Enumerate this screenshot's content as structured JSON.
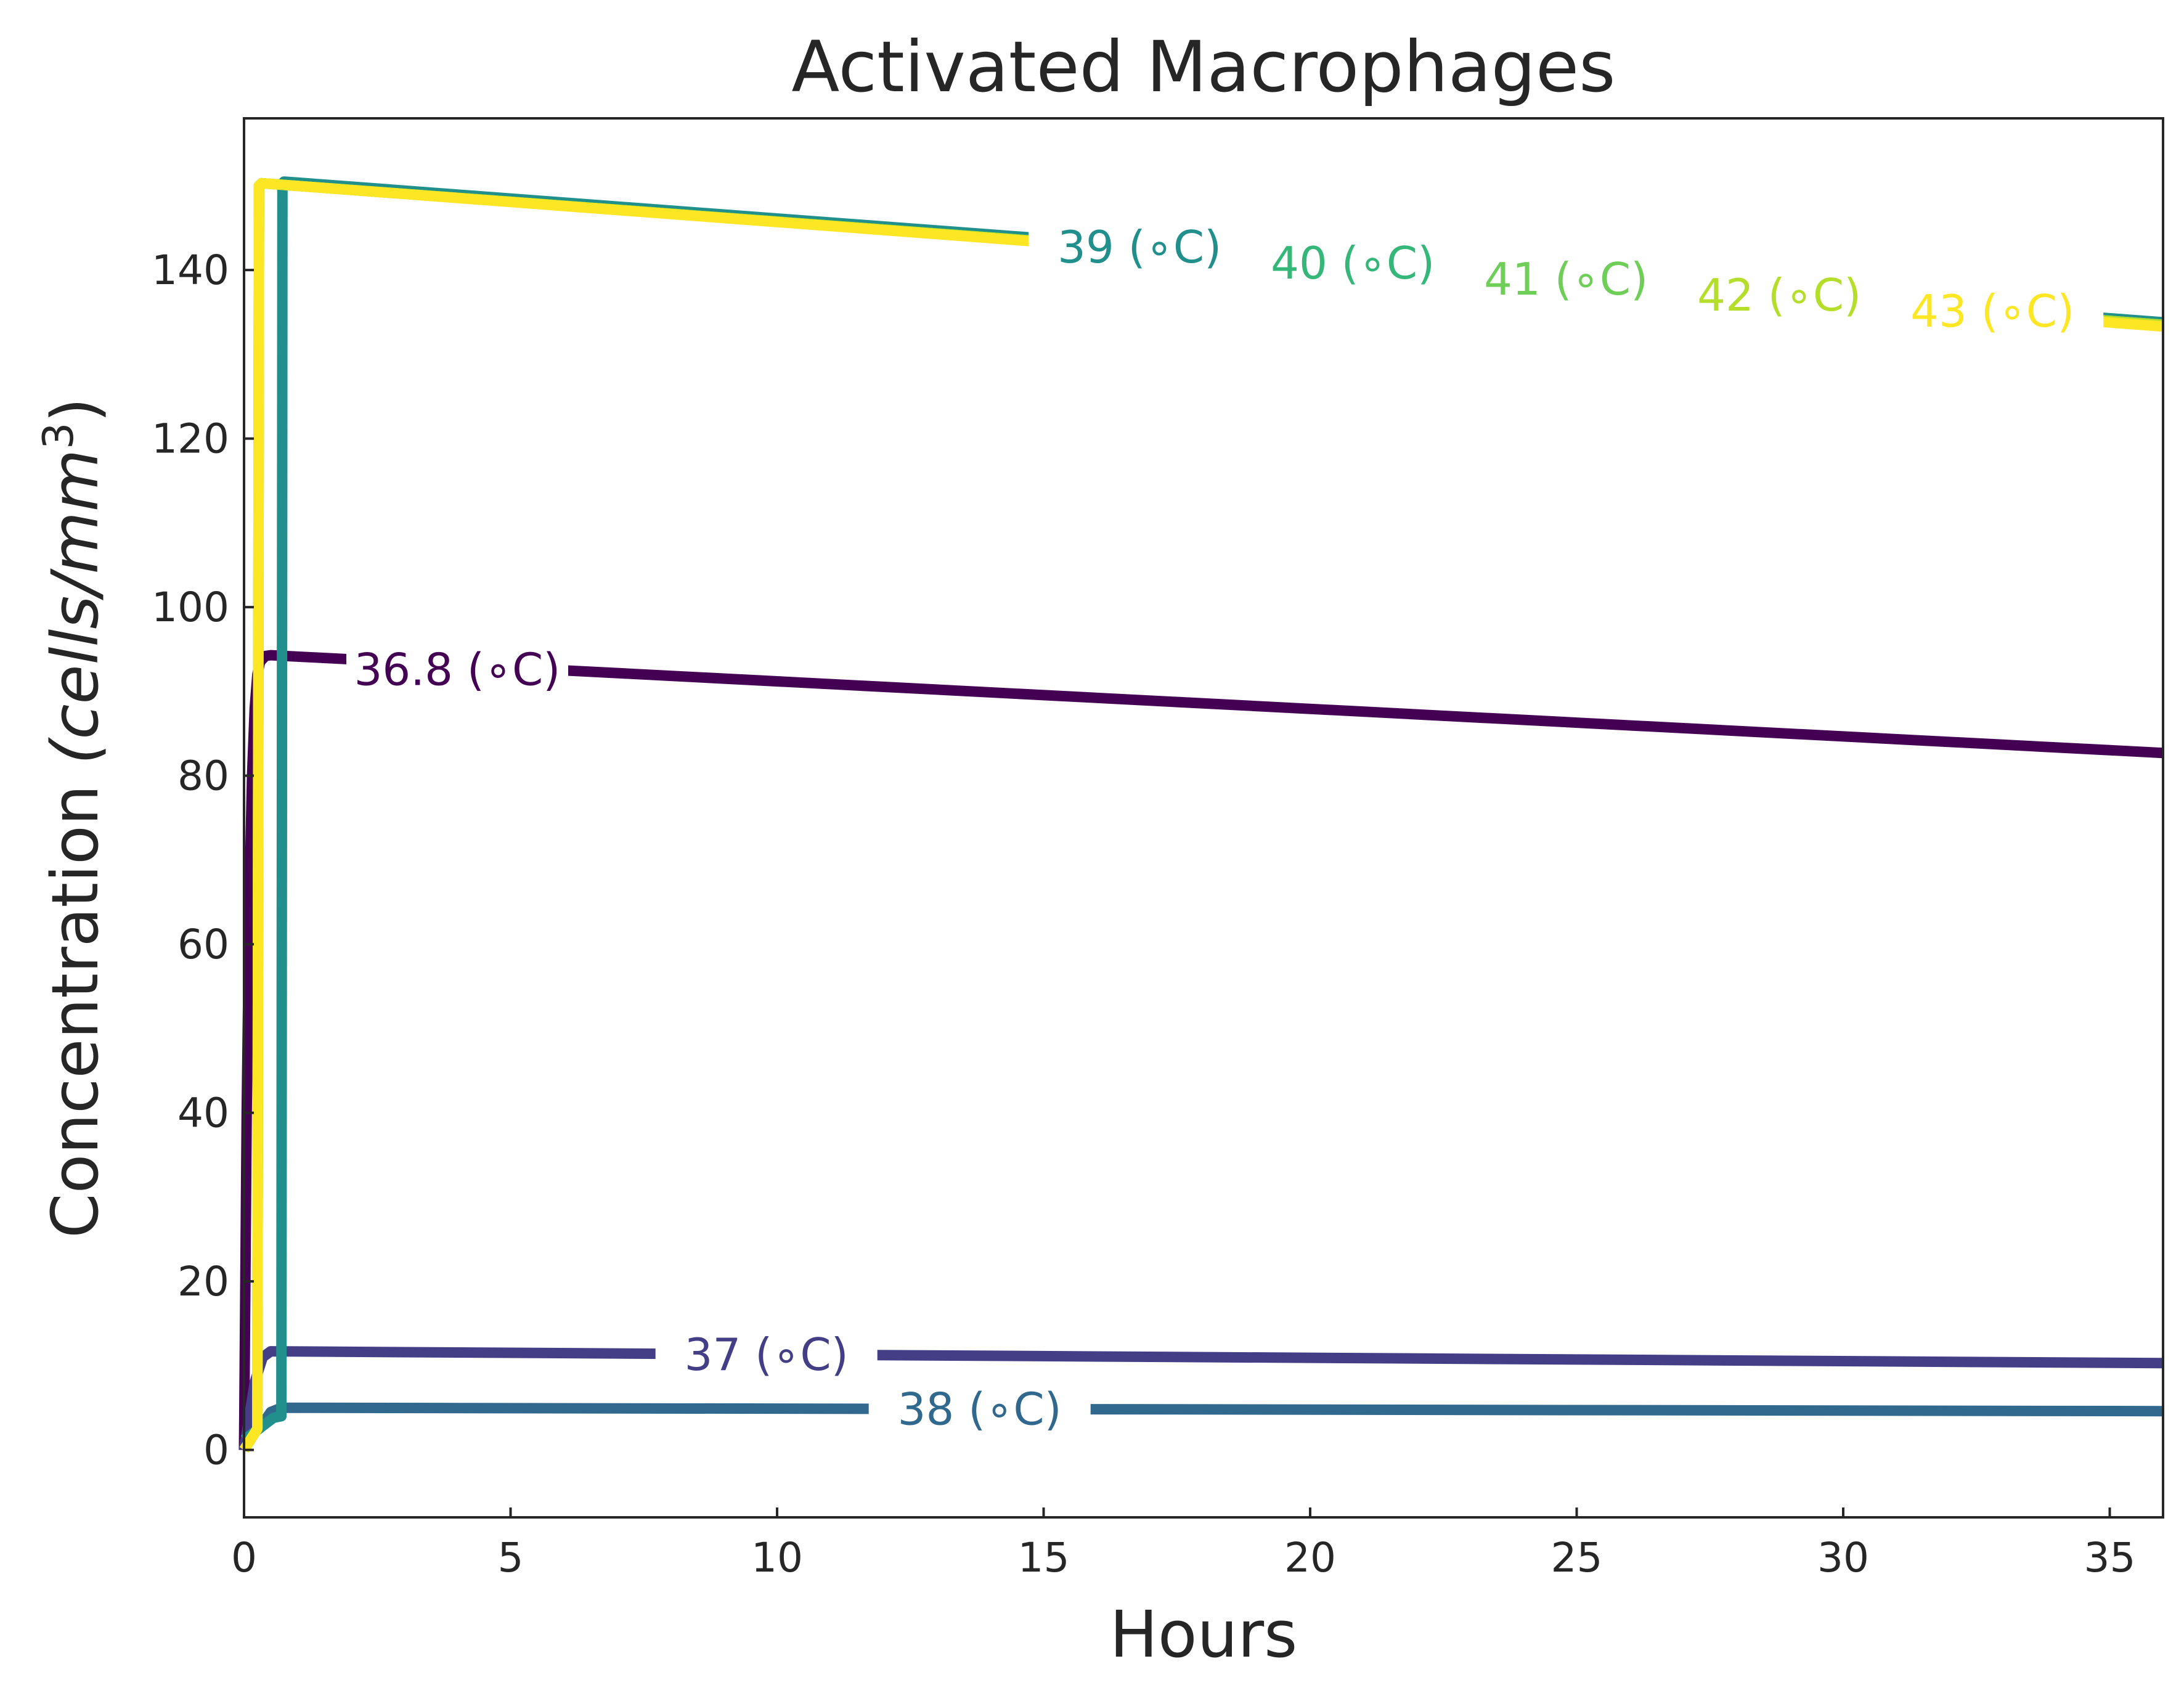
{
  "chart_data": {
    "type": "line",
    "title": "Activated Macrophages",
    "xlabel": "Hours",
    "ylabel": "Concentration",
    "ylabel_units": "(cells/mm",
    "ylabel_exp": "3",
    "ylabel_close": ")",
    "xlim": [
      0,
      36
    ],
    "ylim": [
      -8,
      158
    ],
    "xticks": [
      0,
      5,
      10,
      15,
      20,
      25,
      30,
      35
    ],
    "yticks": [
      0,
      20,
      40,
      60,
      80,
      100,
      120,
      140
    ],
    "xtick_labels": [
      "0",
      "5",
      "10",
      "15",
      "20",
      "25",
      "30",
      "35"
    ],
    "ytick_labels": [
      "0",
      "20",
      "40",
      "60",
      "80",
      "100",
      "120",
      "140"
    ],
    "grid": false,
    "legend": "inline labels",
    "series": [
      {
        "name": "36.8 (∘C)",
        "color": "#440154",
        "x": [
          0,
          0.05,
          0.1,
          0.15,
          0.2,
          0.25,
          0.3,
          0.4,
          0.5,
          36
        ],
        "y": [
          0,
          40,
          65,
          80,
          88,
          92,
          93.5,
          94.2,
          94.3,
          82.7
        ],
        "label_x": 4.0,
        "label_y": 92.6
      },
      {
        "name": "37 (∘C)",
        "color": "#433e85",
        "x": [
          0,
          0.1,
          0.2,
          0.35,
          0.5,
          36
        ],
        "y": [
          0,
          4,
          8,
          11,
          11.7,
          10.3
        ],
        "label_x": 9.8,
        "label_y": 11.3
      },
      {
        "name": "38 (∘C)",
        "color": "#31688e",
        "x": [
          0,
          0.3,
          0.5,
          0.7,
          36
        ],
        "y": [
          1.2,
          2.6,
          4.5,
          5.0,
          4.6
        ],
        "label_x": 13.8,
        "label_y": 4.85
      },
      {
        "name": "39 (∘C)",
        "color": "#21908d",
        "x": [
          0,
          0.3,
          0.55,
          0.7,
          0.72,
          0.75,
          36
        ],
        "y": [
          1.2,
          2.6,
          3.8,
          4.0,
          150,
          150.5,
          133.8
        ],
        "label_x": 16.8,
        "label_y": 142.7
      },
      {
        "name": "40 (∘C)",
        "color": "#35b779",
        "x": [
          0,
          0.25,
          0.28,
          0.33,
          36
        ],
        "y": [
          0,
          2.5,
          150,
          150.3,
          133.5
        ],
        "label_x": 20.8,
        "label_y": 140.8
      },
      {
        "name": "41 (∘C)",
        "color": "#6ece58",
        "x": [
          0,
          0.25,
          0.28,
          0.33,
          36
        ],
        "y": [
          0,
          2.5,
          150,
          150.3,
          133.5
        ],
        "label_x": 24.8,
        "label_y": 138.9
      },
      {
        "name": "42 (∘C)",
        "color": "#b5de2b",
        "x": [
          0,
          0.25,
          0.28,
          0.33,
          36
        ],
        "y": [
          0,
          2.5,
          150,
          150.3,
          133.5
        ],
        "label_x": 28.8,
        "label_y": 137.0
      },
      {
        "name": "43 (∘C)",
        "color": "#fde725",
        "x": [
          0,
          0.25,
          0.28,
          0.33,
          36
        ],
        "y": [
          0,
          2.5,
          150,
          150.3,
          133.3
        ],
        "label_x": 32.8,
        "label_y": 135.1
      }
    ]
  }
}
